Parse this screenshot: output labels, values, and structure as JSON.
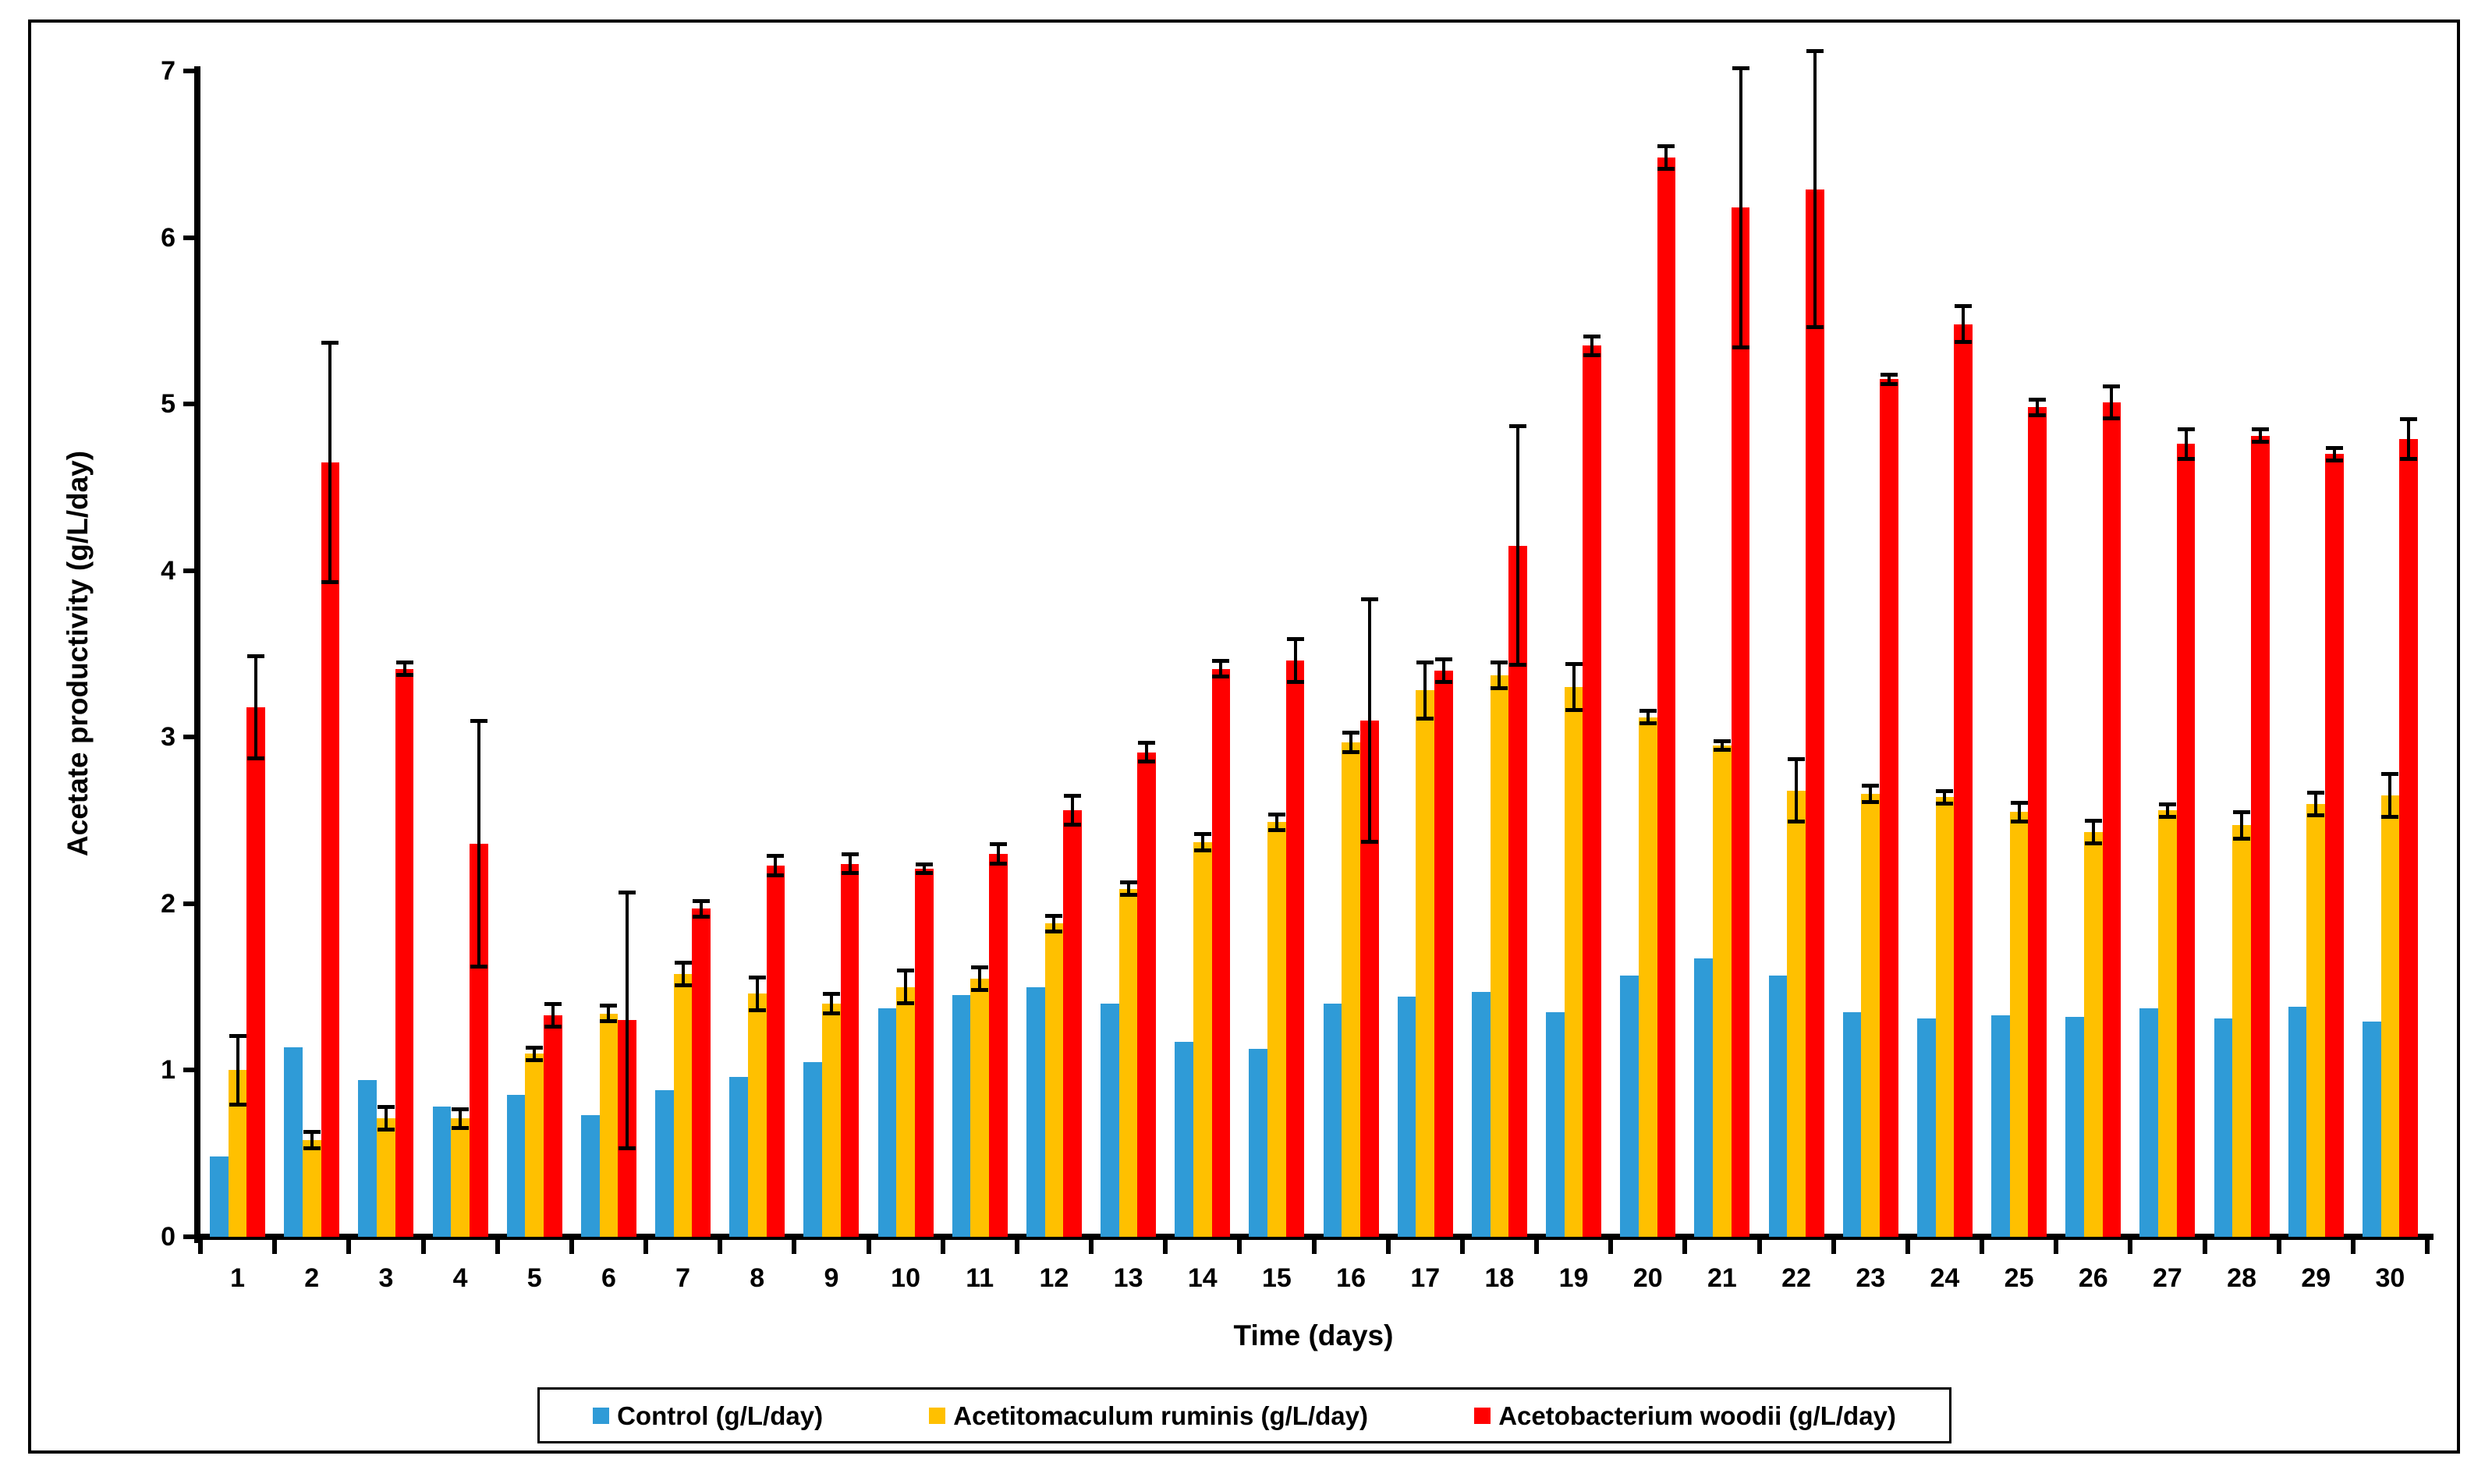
{
  "chart_data": {
    "type": "bar",
    "title": "",
    "xlabel": "Time (days)",
    "ylabel": "Acetate productivity (g/L/day)",
    "ylim": [
      0,
      7
    ],
    "yticks": [
      0,
      1,
      2,
      3,
      4,
      5,
      6,
      7
    ],
    "grid": false,
    "legend_position": "bottom",
    "error_bars": true,
    "categories": [
      "1",
      "2",
      "3",
      "4",
      "5",
      "6",
      "7",
      "8",
      "9",
      "10",
      "11",
      "12",
      "13",
      "14",
      "15",
      "16",
      "17",
      "18",
      "19",
      "20",
      "21",
      "22",
      "23",
      "24",
      "25",
      "26",
      "27",
      "28",
      "29",
      "30"
    ],
    "series": [
      {
        "name": "Control (g/L/day)",
        "slug": "control",
        "color": "#2F9BD7",
        "values": [
          0.48,
          1.14,
          0.94,
          0.78,
          0.85,
          0.73,
          0.88,
          0.96,
          1.05,
          1.37,
          1.45,
          1.5,
          1.4,
          1.17,
          1.13,
          1.4,
          1.44,
          1.47,
          1.35,
          1.57,
          1.67,
          1.57,
          1.35,
          1.31,
          1.33,
          1.32,
          1.37,
          1.31,
          1.38,
          1.29
        ],
        "errors": [
          0,
          0,
          0,
          0,
          0,
          0,
          0,
          0,
          0,
          0,
          0,
          0,
          0,
          0,
          0,
          0,
          0,
          0,
          0,
          0,
          0,
          0,
          0,
          0,
          0,
          0,
          0,
          0,
          0,
          0
        ]
      },
      {
        "name": "Acetitomaculum ruminis (g/L/day)",
        "slug": "acetitomaculum-ruminis",
        "color": "#FFC000",
        "values": [
          1.0,
          0.58,
          0.71,
          0.71,
          1.1,
          1.34,
          1.58,
          1.46,
          1.4,
          1.5,
          1.55,
          1.88,
          2.09,
          2.37,
          2.49,
          2.97,
          3.28,
          3.37,
          3.3,
          3.12,
          2.95,
          2.68,
          2.66,
          2.64,
          2.55,
          2.43,
          2.56,
          2.47,
          2.6,
          2.65
        ],
        "errors": [
          0.21,
          0.05,
          0.07,
          0.06,
          0.04,
          0.05,
          0.07,
          0.1,
          0.06,
          0.1,
          0.07,
          0.05,
          0.04,
          0.05,
          0.05,
          0.06,
          0.17,
          0.08,
          0.14,
          0.04,
          0.03,
          0.19,
          0.05,
          0.04,
          0.06,
          0.07,
          0.04,
          0.08,
          0.07,
          0.13
        ]
      },
      {
        "name": "Acetobacterium woodii (g/L/day)",
        "slug": "acetobacterium-woodii",
        "color": "#FF0000",
        "values": [
          3.18,
          4.65,
          3.41,
          2.36,
          1.33,
          1.3,
          1.97,
          2.23,
          2.24,
          2.21,
          2.3,
          2.56,
          2.91,
          3.41,
          3.46,
          3.1,
          3.4,
          4.15,
          5.35,
          6.48,
          6.18,
          6.29,
          5.15,
          5.48,
          4.98,
          5.01,
          4.76,
          4.81,
          4.7,
          4.79
        ],
        "errors": [
          0.31,
          0.72,
          0.04,
          0.74,
          0.07,
          0.77,
          0.05,
          0.06,
          0.06,
          0.03,
          0.06,
          0.09,
          0.06,
          0.05,
          0.13,
          0.73,
          0.07,
          0.72,
          0.06,
          0.07,
          0.84,
          0.83,
          0.03,
          0.11,
          0.05,
          0.1,
          0.09,
          0.04,
          0.04,
          0.12
        ]
      }
    ],
    "colors": {
      "axis": "#000000",
      "background": "#FFFFFF",
      "frame_border": "#000000"
    }
  }
}
